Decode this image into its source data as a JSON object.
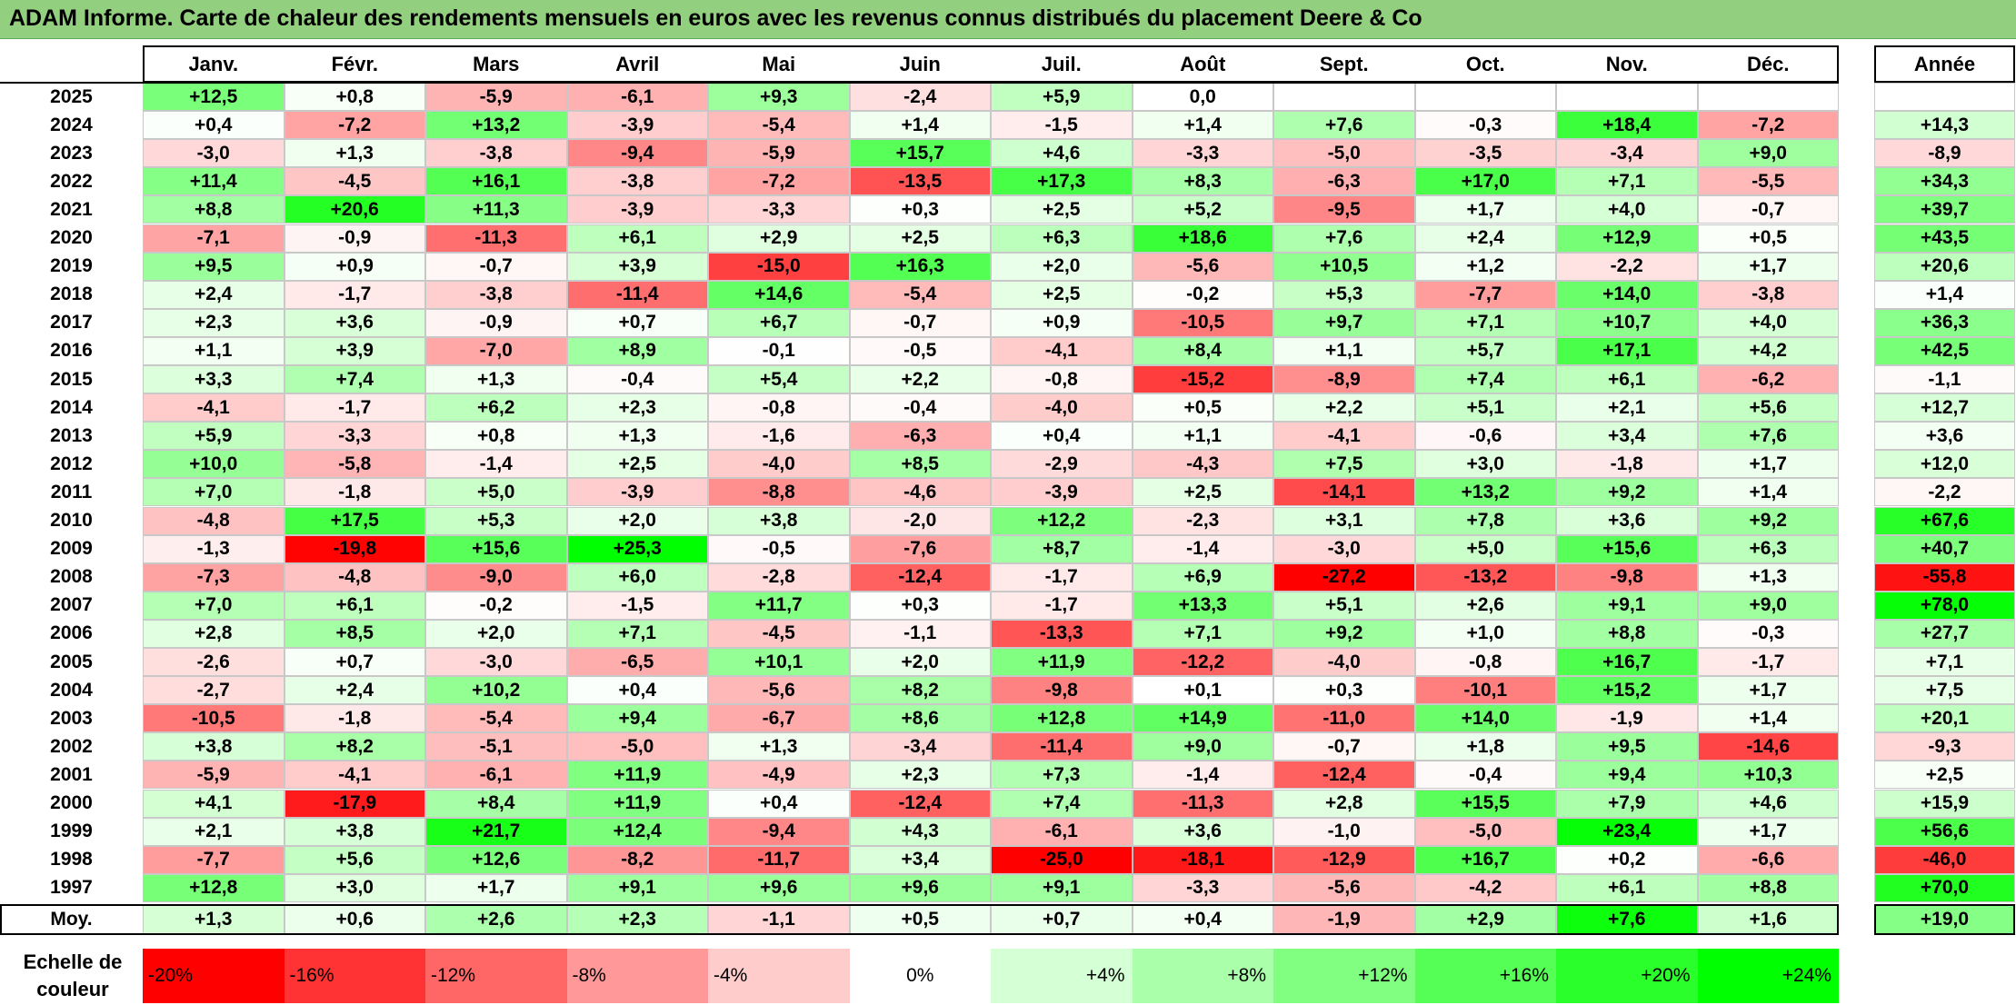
{
  "title": "ADAM Informe. Carte de chaleur des rendements mensuels en euros avec les revenus connus distribués du placement Deere & Co",
  "colors": {
    "max_red": "#ff0000",
    "neutral": "#ffffff",
    "max_green": "#00ff00",
    "title_bg": "#92cf7e"
  },
  "chart_data": {
    "type": "heatmap",
    "title": "ADAM Informe. Carte de chaleur des rendements mensuels en euros avec les revenus connus distribués du placement Deere & Co",
    "months": [
      "Janv.",
      "Févr.",
      "Mars",
      "Avril",
      "Mai",
      "Juin",
      "Juil.",
      "Août",
      "Sept.",
      "Oct.",
      "Nov.",
      "Déc."
    ],
    "year_header": "Année",
    "rows": [
      {
        "year": "2025",
        "values": [
          "+12,5",
          "+0,8",
          "-5,9",
          "-6,1",
          "+9,3",
          "-2,4",
          "+5,9",
          "0,0",
          "",
          "",
          "",
          ""
        ],
        "annual": ""
      },
      {
        "year": "2024",
        "values": [
          "+0,4",
          "-7,2",
          "+13,2",
          "-3,9",
          "-5,4",
          "+1,4",
          "-1,5",
          "+1,4",
          "+7,6",
          "-0,3",
          "+18,4",
          "-7,2"
        ],
        "annual": "+14,3"
      },
      {
        "year": "2023",
        "values": [
          "-3,0",
          "+1,3",
          "-3,8",
          "-9,4",
          "-5,9",
          "+15,7",
          "+4,6",
          "-3,3",
          "-5,0",
          "-3,5",
          "-3,4",
          "+9,0"
        ],
        "annual": "-8,9"
      },
      {
        "year": "2022",
        "values": [
          "+11,4",
          "-4,5",
          "+16,1",
          "-3,8",
          "-7,2",
          "-13,5",
          "+17,3",
          "+8,3",
          "-6,3",
          "+17,0",
          "+7,1",
          "-5,5"
        ],
        "annual": "+34,3"
      },
      {
        "year": "2021",
        "values": [
          "+8,8",
          "+20,6",
          "+11,3",
          "-3,9",
          "-3,3",
          "+0,3",
          "+2,5",
          "+5,2",
          "-9,5",
          "+1,7",
          "+4,0",
          "-0,7"
        ],
        "annual": "+39,7"
      },
      {
        "year": "2020",
        "values": [
          "-7,1",
          "-0,9",
          "-11,3",
          "+6,1",
          "+2,9",
          "+2,5",
          "+6,3",
          "+18,6",
          "+7,6",
          "+2,4",
          "+12,9",
          "+0,5"
        ],
        "annual": "+43,5"
      },
      {
        "year": "2019",
        "values": [
          "+9,5",
          "+0,9",
          "-0,7",
          "+3,9",
          "-15,0",
          "+16,3",
          "+2,0",
          "-5,6",
          "+10,5",
          "+1,2",
          "-2,2",
          "+1,7"
        ],
        "annual": "+20,6"
      },
      {
        "year": "2018",
        "values": [
          "+2,4",
          "-1,7",
          "-3,8",
          "-11,4",
          "+14,6",
          "-5,4",
          "+2,5",
          "-0,2",
          "+5,3",
          "-7,7",
          "+14,0",
          "-3,8"
        ],
        "annual": "+1,4"
      },
      {
        "year": "2017",
        "values": [
          "+2,3",
          "+3,6",
          "-0,9",
          "+0,7",
          "+6,7",
          "-0,7",
          "+0,9",
          "-10,5",
          "+9,7",
          "+7,1",
          "+10,7",
          "+4,0"
        ],
        "annual": "+36,3"
      },
      {
        "year": "2016",
        "values": [
          "+1,1",
          "+3,9",
          "-7,0",
          "+8,9",
          "-0,1",
          "-0,5",
          "-4,1",
          "+8,4",
          "+1,1",
          "+5,7",
          "+17,1",
          "+4,2"
        ],
        "annual": "+42,5"
      },
      {
        "year": "2015",
        "values": [
          "+3,3",
          "+7,4",
          "+1,3",
          "-0,4",
          "+5,4",
          "+2,2",
          "-0,8",
          "-15,2",
          "-8,9",
          "+7,4",
          "+6,1",
          "-6,2"
        ],
        "annual": "-1,1"
      },
      {
        "year": "2014",
        "values": [
          "-4,1",
          "-1,7",
          "+6,2",
          "+2,3",
          "-0,8",
          "-0,4",
          "-4,0",
          "+0,5",
          "+2,2",
          "+5,1",
          "+2,1",
          "+5,6"
        ],
        "annual": "+12,7"
      },
      {
        "year": "2013",
        "values": [
          "+5,9",
          "-3,3",
          "+0,8",
          "+1,3",
          "-1,6",
          "-6,3",
          "+0,4",
          "+1,1",
          "-4,1",
          "-0,6",
          "+3,4",
          "+7,6"
        ],
        "annual": "+3,6"
      },
      {
        "year": "2012",
        "values": [
          "+10,0",
          "-5,8",
          "-1,4",
          "+2,5",
          "-4,0",
          "+8,5",
          "-2,9",
          "-4,3",
          "+7,5",
          "+3,0",
          "-1,8",
          "+1,7"
        ],
        "annual": "+12,0"
      },
      {
        "year": "2011",
        "values": [
          "+7,0",
          "-1,8",
          "+5,0",
          "-3,9",
          "-8,8",
          "-4,6",
          "-3,9",
          "+2,5",
          "-14,1",
          "+13,2",
          "+9,2",
          "+1,4"
        ],
        "annual": "-2,2"
      },
      {
        "year": "2010",
        "values": [
          "-4,8",
          "+17,5",
          "+5,3",
          "+2,0",
          "+3,8",
          "-2,0",
          "+12,2",
          "-2,3",
          "+3,1",
          "+7,8",
          "+3,6",
          "+9,2"
        ],
        "annual": "+67,6"
      },
      {
        "year": "2009",
        "values": [
          "-1,3",
          "-19,8",
          "+15,6",
          "+25,3",
          "-0,5",
          "-7,6",
          "+8,7",
          "-1,4",
          "-3,0",
          "+5,0",
          "+15,6",
          "+6,3"
        ],
        "annual": "+40,7"
      },
      {
        "year": "2008",
        "values": [
          "-7,3",
          "-4,8",
          "-9,0",
          "+6,0",
          "-2,8",
          "-12,4",
          "-1,7",
          "+6,9",
          "-27,2",
          "-13,2",
          "-9,8",
          "+1,3"
        ],
        "annual": "-55,8"
      },
      {
        "year": "2007",
        "values": [
          "+7,0",
          "+6,1",
          "-0,2",
          "-1,5",
          "+11,7",
          "+0,3",
          "-1,7",
          "+13,3",
          "+5,1",
          "+2,6",
          "+9,1",
          "+9,0"
        ],
        "annual": "+78,0"
      },
      {
        "year": "2006",
        "values": [
          "+2,8",
          "+8,5",
          "+2,0",
          "+7,1",
          "-4,5",
          "-1,1",
          "-13,3",
          "+7,1",
          "+9,2",
          "+1,0",
          "+8,8",
          "-0,3"
        ],
        "annual": "+27,7"
      },
      {
        "year": "2005",
        "values": [
          "-2,6",
          "+0,7",
          "-3,0",
          "-6,5",
          "+10,1",
          "+2,0",
          "+11,9",
          "-12,2",
          "-4,0",
          "-0,8",
          "+16,7",
          "-1,7"
        ],
        "annual": "+7,1"
      },
      {
        "year": "2004",
        "values": [
          "-2,7",
          "+2,4",
          "+10,2",
          "+0,4",
          "-5,6",
          "+8,2",
          "-9,8",
          "+0,1",
          "+0,3",
          "-10,1",
          "+15,2",
          "+1,7"
        ],
        "annual": "+7,5"
      },
      {
        "year": "2003",
        "values": [
          "-10,5",
          "-1,8",
          "-5,4",
          "+9,4",
          "-6,7",
          "+8,6",
          "+12,8",
          "+14,9",
          "-11,0",
          "+14,0",
          "-1,9",
          "+1,4"
        ],
        "annual": "+20,1"
      },
      {
        "year": "2002",
        "values": [
          "+3,8",
          "+8,2",
          "-5,1",
          "-5,0",
          "+1,3",
          "-3,4",
          "-11,4",
          "+9,0",
          "-0,7",
          "+1,8",
          "+9,5",
          "-14,6"
        ],
        "annual": "-9,3"
      },
      {
        "year": "2001",
        "values": [
          "-5,9",
          "-4,1",
          "-6,1",
          "+11,9",
          "-4,9",
          "+2,3",
          "+7,3",
          "-1,4",
          "-12,4",
          "-0,4",
          "+9,4",
          "+10,3"
        ],
        "annual": "+2,5"
      },
      {
        "year": "2000",
        "values": [
          "+4,1",
          "-17,9",
          "+8,4",
          "+11,9",
          "+0,4",
          "-12,4",
          "+7,4",
          "-11,3",
          "+2,8",
          "+15,5",
          "+7,9",
          "+4,6"
        ],
        "annual": "+15,9"
      },
      {
        "year": "1999",
        "values": [
          "+2,1",
          "+3,8",
          "+21,7",
          "+12,4",
          "-9,4",
          "+4,3",
          "-6,1",
          "+3,6",
          "-1,0",
          "-5,0",
          "+23,4",
          "+1,7"
        ],
        "annual": "+56,6"
      },
      {
        "year": "1998",
        "values": [
          "-7,7",
          "+5,6",
          "+12,6",
          "-8,2",
          "-11,7",
          "+3,4",
          "-25,0",
          "-18,1",
          "-12,9",
          "+16,7",
          "+0,2",
          "-6,6"
        ],
        "annual": "-46,0"
      },
      {
        "year": "1997",
        "values": [
          "+12,8",
          "+3,0",
          "+1,7",
          "+9,1",
          "+9,6",
          "+9,6",
          "+9,1",
          "-3,3",
          "-5,6",
          "-4,2",
          "+6,1",
          "+8,8"
        ],
        "annual": "+70,0"
      }
    ],
    "average": {
      "label": "Moy.",
      "values": [
        "+1,3",
        "+0,6",
        "+2,6",
        "+2,3",
        "-1,1",
        "+0,5",
        "+0,7",
        "+0,4",
        "-1,9",
        "+2,9",
        "+7,6",
        "+1,6"
      ],
      "annual": "+19,0"
    },
    "scale": {
      "label": "Echelle de couleur",
      "ticks": [
        "-20%",
        "-16%",
        "-12%",
        "-8%",
        "-4%",
        "0%",
        "+4%",
        "+8%",
        "+12%",
        "+16%",
        "+20%",
        "+24%"
      ],
      "min": -20,
      "max": 24
    }
  }
}
